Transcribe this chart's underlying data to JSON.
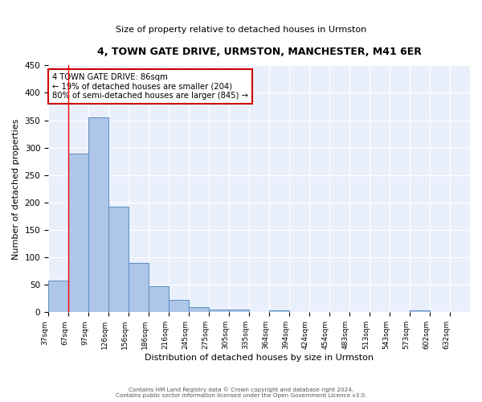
{
  "title": "4, TOWN GATE DRIVE, URMSTON, MANCHESTER, M41 6ER",
  "subtitle": "Size of property relative to detached houses in Urmston",
  "xlabel": "Distribution of detached houses by size in Urmston",
  "ylabel": "Number of detached properties",
  "bar_values": [
    57,
    290,
    355,
    192,
    90,
    47,
    22,
    9,
    5,
    5,
    0,
    4,
    0,
    0,
    0,
    0,
    0,
    0,
    3,
    0,
    0
  ],
  "x_tick_labels": [
    "37sqm",
    "67sqm",
    "97sqm",
    "126sqm",
    "156sqm",
    "186sqm",
    "216sqm",
    "245sqm",
    "275sqm",
    "305sqm",
    "335sqm",
    "364sqm",
    "394sqm",
    "424sqm",
    "454sqm",
    "483sqm",
    "513sqm",
    "543sqm",
    "573sqm",
    "602sqm",
    "632sqm"
  ],
  "bar_color": "#aec6e8",
  "bar_edge_color": "#5a8fc2",
  "background_color": "#eaf0fb",
  "grid_color": "#ffffff",
  "red_line_x": 1.0,
  "annotation_line1": "4 TOWN GATE DRIVE: 86sqm",
  "annotation_line2": "← 19% of detached houses are smaller (204)",
  "annotation_line3": "80% of semi-detached houses are larger (845) →",
  "annotation_box_color": "#ffffff",
  "annotation_box_edge_color": "#cc0000",
  "ylim": [
    0,
    450
  ],
  "yticks": [
    0,
    50,
    100,
    150,
    200,
    250,
    300,
    350,
    400,
    450
  ],
  "footer_line1": "Contains HM Land Registry data © Crown copyright and database right 2024.",
  "footer_line2": "Contains public sector information licensed under the Open Government Licence v3.0."
}
